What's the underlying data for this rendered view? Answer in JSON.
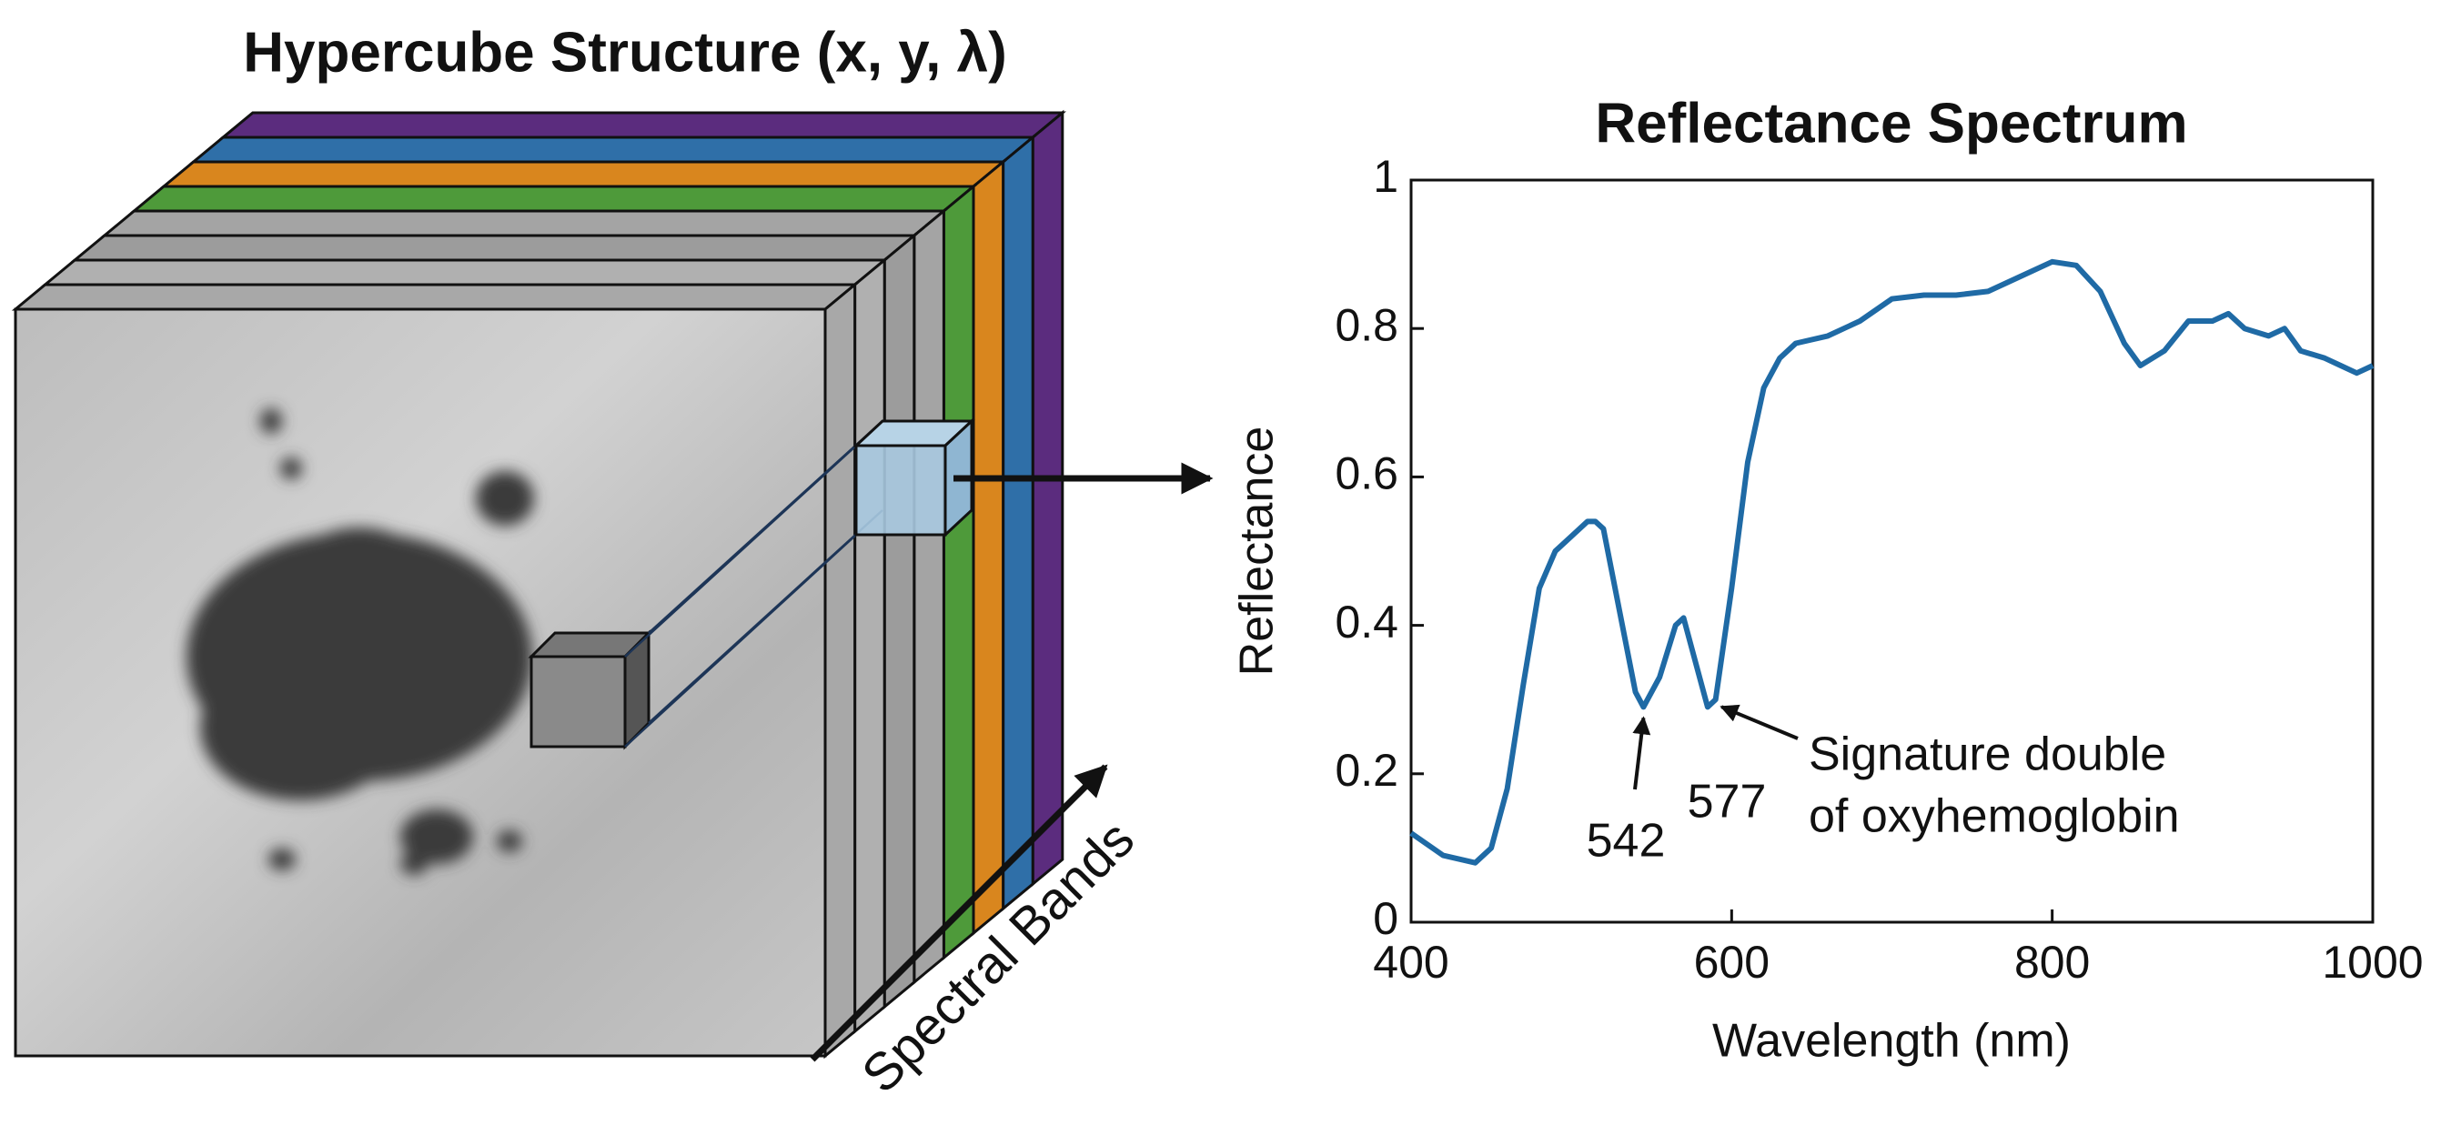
{
  "diagram": {
    "title": "Hypercube Structure (x, y, λ)",
    "axis_label": "Spectral Bands"
  },
  "chart_data": {
    "type": "line",
    "title": "Reflectance Spectrum",
    "x_label": "Wavelength (nm)",
    "y_label": "Reflectance",
    "x": [
      400,
      420,
      440,
      450,
      460,
      470,
      480,
      490,
      500,
      510,
      515,
      520,
      530,
      540,
      545,
      555,
      565,
      570,
      575,
      585,
      590,
      600,
      610,
      620,
      630,
      640,
      660,
      680,
      700,
      720,
      740,
      760,
      780,
      800,
      815,
      830,
      845,
      855,
      870,
      885,
      900,
      910,
      920,
      935,
      945,
      955,
      970,
      980,
      990,
      1000
    ],
    "values": [
      0.12,
      0.09,
      0.08,
      0.1,
      0.18,
      0.32,
      0.45,
      0.5,
      0.52,
      0.54,
      0.54,
      0.53,
      0.42,
      0.31,
      0.29,
      0.33,
      0.4,
      0.41,
      0.37,
      0.29,
      0.3,
      0.45,
      0.62,
      0.72,
      0.76,
      0.78,
      0.79,
      0.81,
      0.84,
      0.845,
      0.845,
      0.85,
      0.87,
      0.89,
      0.885,
      0.85,
      0.78,
      0.75,
      0.77,
      0.81,
      0.81,
      0.82,
      0.8,
      0.79,
      0.8,
      0.77,
      0.76,
      0.75,
      0.74,
      0.75
    ],
    "color": "#1f6aa5",
    "xlim": [
      400,
      1000
    ],
    "xticks": [
      400,
      600,
      800,
      1000
    ],
    "ylim": [
      0,
      1
    ],
    "yticks": [
      0,
      0.2,
      0.4,
      0.6,
      0.8,
      1
    ],
    "annotations": [
      {
        "text": "542",
        "x": 545,
        "y": 0.29
      },
      {
        "text": "577"
      },
      {
        "text": [
          "Signature double",
          "of oxyhemoglobin"
        ],
        "x": 588,
        "y": 0.3
      }
    ]
  }
}
